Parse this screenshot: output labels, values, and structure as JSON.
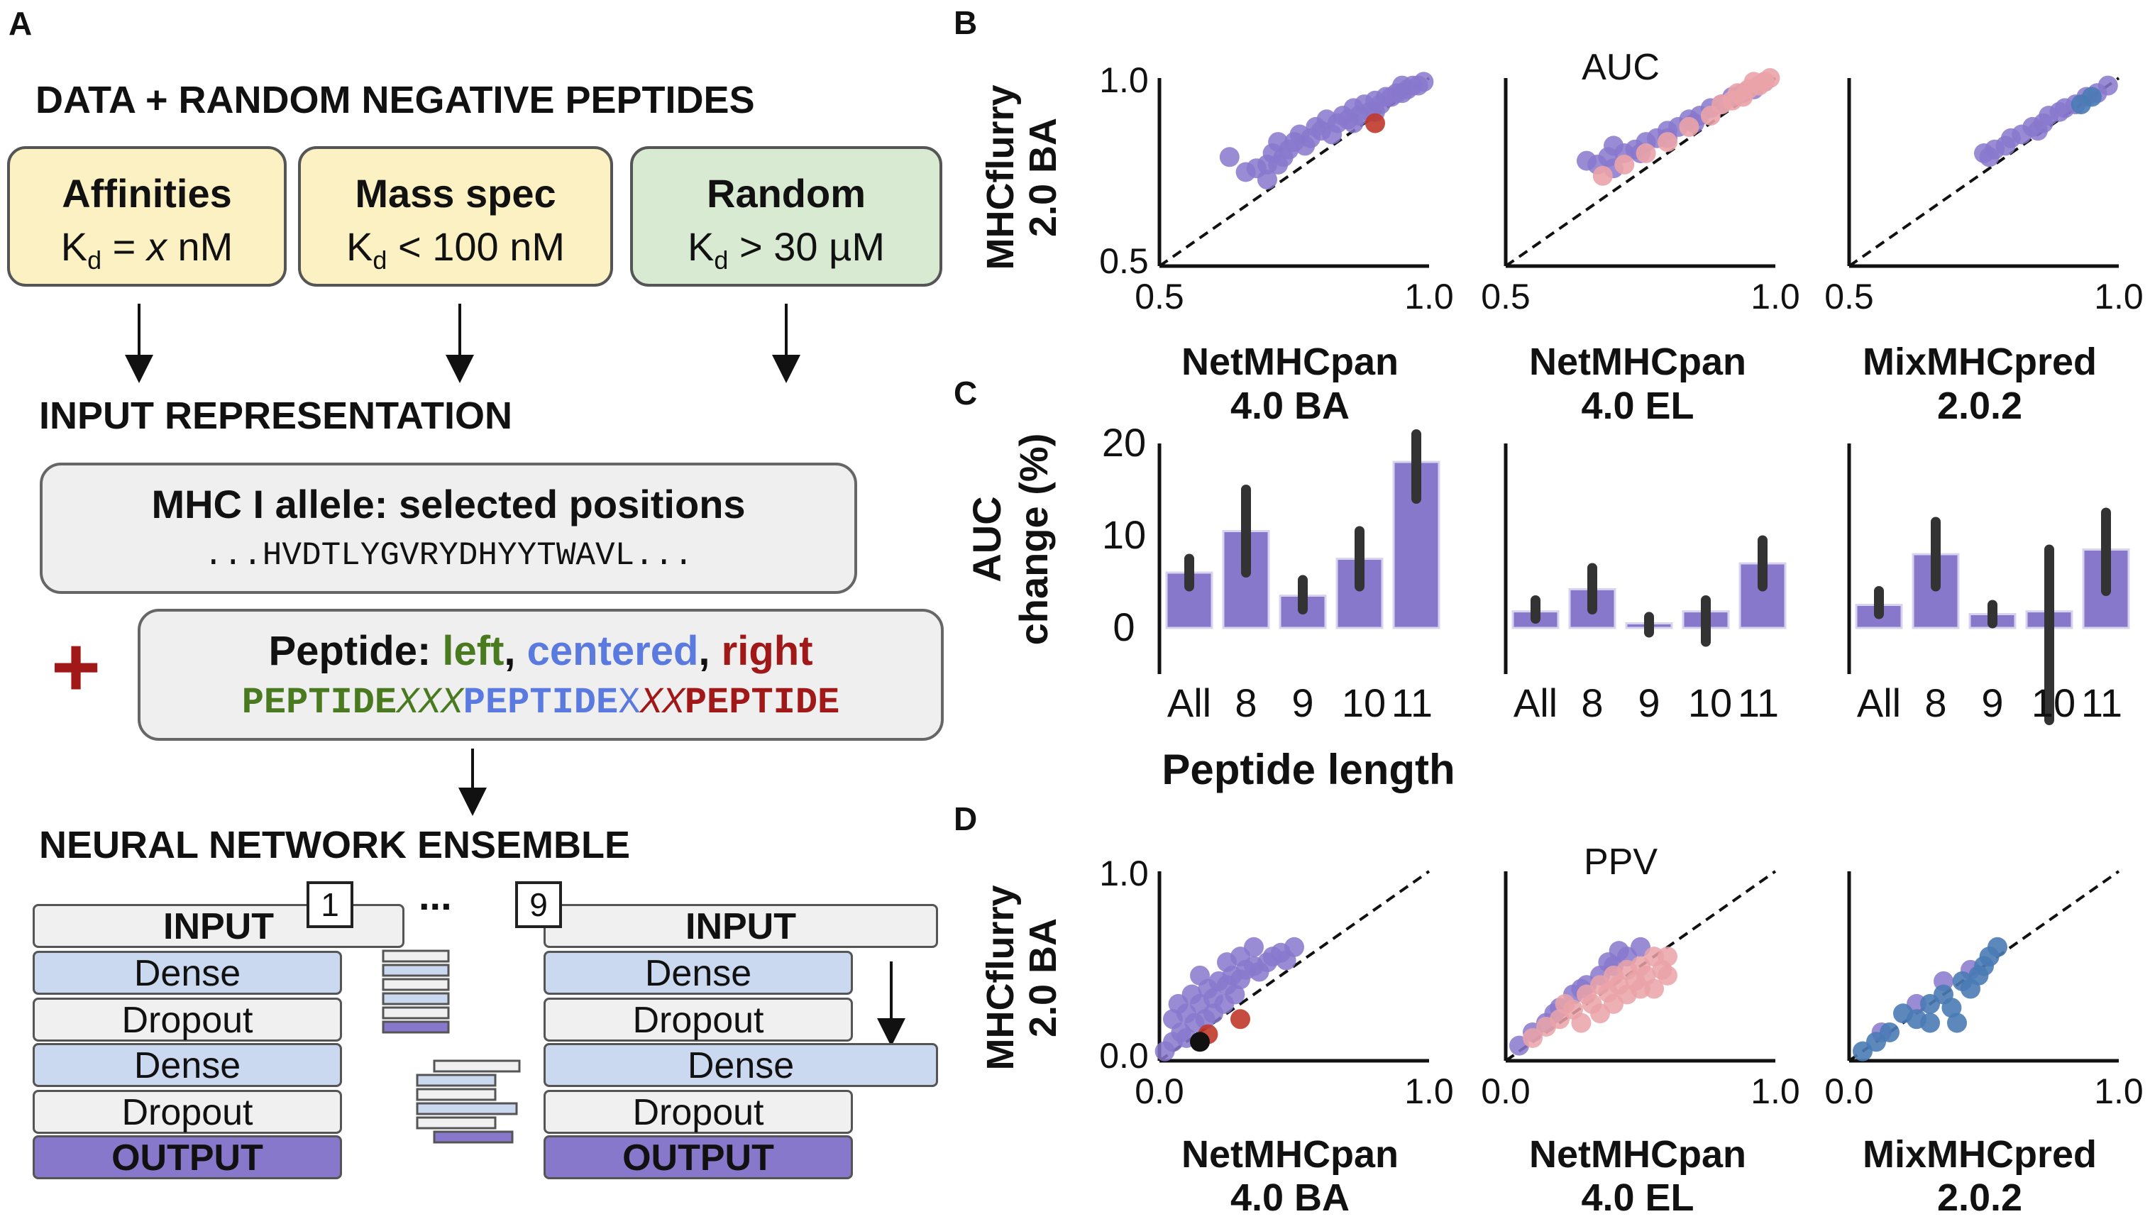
{
  "panel_a": {
    "letter": "A",
    "section1": "DATA + RANDOM NEGATIVE PEPTIDES",
    "boxes": [
      {
        "title": "Affinities",
        "k": "K",
        "sub": "d",
        "rel": " = ",
        "val": "x",
        "unit": " nM",
        "color": "#fbf1c2"
      },
      {
        "title": "Mass spec",
        "k": "K",
        "sub": "d",
        "rel": " < 100 nM",
        "val": "",
        "unit": "",
        "color": "#fbf1c2"
      },
      {
        "title": "Random",
        "k": "K",
        "sub": "d",
        "rel": " > 30 µM",
        "val": "",
        "unit": "",
        "color": "#d9ead3"
      }
    ],
    "section2": "INPUT REPRESENTATION",
    "mhc_title": "MHC I allele: selected positions",
    "mhc_seq": "...HVDTLYGVRYDHYYTWAVL...",
    "plus": "+",
    "pep_label": "Peptide: ",
    "pep_left": "left",
    "pep_comma1": ", ",
    "pep_centered": "centered",
    "pep_comma2": ", ",
    "pep_right": "right",
    "seq_parts": [
      {
        "text": "PEPTIDE",
        "color": "#4a7a20",
        "italic": false,
        "bold": true
      },
      {
        "text": "XXX",
        "color": "#4a7a20",
        "italic": true,
        "bold": false
      },
      {
        "text": "PEPTIDE",
        "color": "#5b7ae0",
        "italic": false,
        "bold": true
      },
      {
        "text": "X",
        "color": "#5b7ae0",
        "italic": false,
        "bold": false
      },
      {
        "text": "XX",
        "color": "#a01818",
        "italic": true,
        "bold": false
      },
      {
        "text": "PEPTIDE",
        "color": "#a01818",
        "italic": false,
        "bold": true
      }
    ],
    "section3": "NEURAL NETWORK ENSEMBLE",
    "net1_num": "1",
    "net9_num": "9",
    "ellipsis": "...",
    "layers": [
      "INPUT",
      "Dense",
      "Dropout",
      "Dense",
      "Dropout",
      "OUTPUT"
    ]
  },
  "panel_b": {
    "letter": "B",
    "ylabel_1": "MHCflurry",
    "ylabel_2": "2.0 BA",
    "title": "AUC",
    "tick_min": "0.5",
    "tick_max": "1.0"
  },
  "panel_c": {
    "letter": "C",
    "ylabel_1": "AUC",
    "ylabel_2": "change (%)",
    "xlabel": "Peptide length",
    "yticks": [
      "20",
      "10",
      "0"
    ],
    "xticks": [
      "All",
      "8",
      "9",
      "10",
      "11"
    ]
  },
  "panel_d": {
    "letter": "D",
    "ylabel_1": "MHCflurry",
    "ylabel_2": "2.0 BA",
    "title": "PPV",
    "tick_min": "0.0",
    "tick_max": "1.0"
  },
  "predictors": [
    {
      "line1": "NetMHCpan",
      "line2": "4.0 BA"
    },
    {
      "line1": "NetMHCpan",
      "line2": "4.0 EL"
    },
    {
      "line1": "MixMHCpred",
      "line2": "2.0.2"
    }
  ],
  "colors": {
    "purple": "#8878cc",
    "pink": "#eaa3a8",
    "red": "#c0392b",
    "blue": "#4a7bb5",
    "bar": "#8878cc",
    "errbar": "#333333"
  },
  "chart_data": [
    {
      "panel": "B",
      "type": "scatter",
      "title": "AUC",
      "xlim": [
        0.5,
        1.0
      ],
      "ylim": [
        0.5,
        1.0
      ],
      "plots": [
        {
          "predictor": "NetMHCpan 4.0 BA",
          "points": [
            [
              0.63,
              0.79
            ],
            [
              0.66,
              0.75
            ],
            [
              0.68,
              0.76
            ],
            [
              0.7,
              0.77
            ],
            [
              0.71,
              0.8
            ],
            [
              0.72,
              0.77
            ],
            [
              0.73,
              0.79
            ],
            [
              0.74,
              0.81
            ],
            [
              0.75,
              0.83
            ],
            [
              0.72,
              0.83
            ],
            [
              0.76,
              0.85
            ],
            [
              0.78,
              0.84
            ],
            [
              0.79,
              0.87
            ],
            [
              0.8,
              0.86
            ],
            [
              0.81,
              0.89
            ],
            [
              0.83,
              0.88
            ],
            [
              0.84,
              0.9
            ],
            [
              0.85,
              0.89
            ],
            [
              0.86,
              0.92
            ],
            [
              0.87,
              0.9
            ],
            [
              0.88,
              0.93
            ],
            [
              0.89,
              0.91
            ],
            [
              0.9,
              0.94
            ],
            [
              0.91,
              0.93
            ],
            [
              0.92,
              0.95
            ],
            [
              0.93,
              0.95
            ],
            [
              0.94,
              0.96
            ],
            [
              0.95,
              0.96
            ],
            [
              0.96,
              0.97
            ],
            [
              0.97,
              0.98
            ],
            [
              0.98,
              0.98
            ],
            [
              0.99,
              0.99
            ],
            [
              0.7,
              0.73
            ],
            [
              0.77,
              0.82
            ],
            [
              0.82,
              0.85
            ],
            [
              0.86,
              0.88
            ],
            [
              0.9,
              0.91
            ],
            [
              0.95,
              0.98
            ]
          ],
          "points_b": [
            [
              0.9,
              0.88
            ]
          ]
        },
        {
          "predictor": "NetMHCpan 4.0 EL",
          "points": [
            [
              0.65,
              0.78
            ],
            [
              0.67,
              0.77
            ],
            [
              0.69,
              0.79
            ],
            [
              0.7,
              0.76
            ],
            [
              0.72,
              0.8
            ],
            [
              0.74,
              0.81
            ],
            [
              0.76,
              0.83
            ],
            [
              0.78,
              0.84
            ],
            [
              0.8,
              0.86
            ],
            [
              0.82,
              0.87
            ],
            [
              0.84,
              0.89
            ],
            [
              0.86,
              0.9
            ],
            [
              0.88,
              0.92
            ],
            [
              0.9,
              0.93
            ],
            [
              0.92,
              0.95
            ],
            [
              0.94,
              0.96
            ],
            [
              0.96,
              0.97
            ],
            [
              0.98,
              0.99
            ],
            [
              0.7,
              0.82
            ],
            [
              0.75,
              0.8
            ],
            [
              0.8,
              0.84
            ],
            [
              0.85,
              0.88
            ]
          ],
          "points_b": [
            [
              0.68,
              0.74
            ],
            [
              0.72,
              0.77
            ],
            [
              0.76,
              0.8
            ],
            [
              0.8,
              0.83
            ],
            [
              0.84,
              0.87
            ],
            [
              0.88,
              0.9
            ],
            [
              0.9,
              0.93
            ],
            [
              0.92,
              0.94
            ],
            [
              0.94,
              0.95
            ],
            [
              0.95,
              0.97
            ],
            [
              0.97,
              0.98
            ],
            [
              0.98,
              0.99
            ],
            [
              0.99,
              1.0
            ],
            [
              0.96,
              0.99
            ],
            [
              0.93,
              0.96
            ]
          ]
        },
        {
          "predictor": "MixMHCpred 2.0.2",
          "points": [
            [
              0.75,
              0.8
            ],
            [
              0.77,
              0.81
            ],
            [
              0.79,
              0.82
            ],
            [
              0.8,
              0.84
            ],
            [
              0.82,
              0.85
            ],
            [
              0.84,
              0.87
            ],
            [
              0.86,
              0.88
            ],
            [
              0.87,
              0.9
            ],
            [
              0.89,
              0.91
            ],
            [
              0.9,
              0.92
            ],
            [
              0.92,
              0.93
            ],
            [
              0.94,
              0.95
            ],
            [
              0.96,
              0.96
            ],
            [
              0.98,
              0.98
            ],
            [
              0.76,
              0.79
            ],
            [
              0.85,
              0.86
            ]
          ],
          "points_b": [
            [
              0.93,
              0.93
            ],
            [
              0.95,
              0.95
            ]
          ]
        }
      ]
    },
    {
      "panel": "C",
      "type": "bar",
      "xlabel": "Peptide length",
      "ylabel": "AUC change (%)",
      "categories": [
        "All",
        "8",
        "9",
        "10",
        "11"
      ],
      "ylim": [
        -5,
        20
      ],
      "series": [
        {
          "predictor": "NetMHCpan 4.0 BA",
          "values": [
            6,
            10.5,
            3.5,
            7.5,
            18
          ],
          "err_low": [
            4.5,
            6,
            2,
            4.5,
            14
          ],
          "err_high": [
            7.5,
            15,
            5.2,
            10.5,
            21
          ]
        },
        {
          "predictor": "NetMHCpan 4.0 EL",
          "values": [
            1.8,
            4.2,
            0.5,
            1.8,
            7
          ],
          "err_low": [
            1,
            2,
            -0.5,
            -1.5,
            4.5
          ],
          "err_high": [
            3,
            6.5,
            1.2,
            3,
            9.5
          ]
        },
        {
          "predictor": "MixMHCpred 2.0.2",
          "values": [
            2.5,
            8,
            1.5,
            1.8,
            8.5
          ],
          "err_low": [
            1.5,
            4.5,
            0.5,
            -10,
            4
          ],
          "err_high": [
            4,
            11.5,
            2.5,
            8.5,
            12.5
          ]
        }
      ]
    },
    {
      "panel": "D",
      "type": "scatter",
      "title": "PPV",
      "xlim": [
        0.0,
        1.0
      ],
      "ylim": [
        0.0,
        1.0
      ],
      "plots": [
        {
          "predictor": "NetMHCpan 4.0 BA",
          "points": [
            [
              0.05,
              0.22
            ],
            [
              0.07,
              0.3
            ],
            [
              0.1,
              0.25
            ],
            [
              0.12,
              0.35
            ],
            [
              0.15,
              0.3
            ],
            [
              0.18,
              0.38
            ],
            [
              0.2,
              0.33
            ],
            [
              0.22,
              0.42
            ],
            [
              0.25,
              0.4
            ],
            [
              0.27,
              0.45
            ],
            [
              0.3,
              0.43
            ],
            [
              0.32,
              0.48
            ],
            [
              0.35,
              0.5
            ],
            [
              0.37,
              0.47
            ],
            [
              0.4,
              0.52
            ],
            [
              0.42,
              0.55
            ],
            [
              0.45,
              0.57
            ],
            [
              0.47,
              0.53
            ],
            [
              0.5,
              0.6
            ],
            [
              0.05,
              0.1
            ],
            [
              0.08,
              0.15
            ],
            [
              0.1,
              0.12
            ],
            [
              0.13,
              0.2
            ],
            [
              0.17,
              0.22
            ],
            [
              0.2,
              0.25
            ],
            [
              0.24,
              0.3
            ],
            [
              0.28,
              0.35
            ],
            [
              0.3,
              0.55
            ],
            [
              0.35,
              0.6
            ],
            [
              0.02,
              0.05
            ],
            [
              0.15,
              0.45
            ],
            [
              0.25,
              0.52
            ]
          ],
          "points_b": [
            [
              0.3,
              0.22
            ],
            [
              0.18,
              0.14
            ]
          ],
          "points_k": [
            [
              0.15,
              0.1
            ]
          ]
        },
        {
          "predictor": "NetMHCpan 4.0 EL",
          "points": [
            [
              0.05,
              0.08
            ],
            [
              0.1,
              0.15
            ],
            [
              0.15,
              0.2
            ],
            [
              0.2,
              0.28
            ],
            [
              0.25,
              0.35
            ],
            [
              0.3,
              0.4
            ],
            [
              0.35,
              0.45
            ],
            [
              0.4,
              0.5
            ],
            [
              0.45,
              0.55
            ],
            [
              0.5,
              0.6
            ],
            [
              0.38,
              0.52
            ],
            [
              0.42,
              0.58
            ],
            [
              0.28,
              0.38
            ],
            [
              0.18,
              0.25
            ]
          ],
          "points_b": [
            [
              0.1,
              0.12
            ],
            [
              0.15,
              0.18
            ],
            [
              0.2,
              0.22
            ],
            [
              0.22,
              0.3
            ],
            [
              0.25,
              0.27
            ],
            [
              0.3,
              0.35
            ],
            [
              0.32,
              0.3
            ],
            [
              0.35,
              0.4
            ],
            [
              0.38,
              0.36
            ],
            [
              0.4,
              0.45
            ],
            [
              0.42,
              0.4
            ],
            [
              0.45,
              0.48
            ],
            [
              0.48,
              0.42
            ],
            [
              0.5,
              0.5
            ],
            [
              0.52,
              0.45
            ],
            [
              0.55,
              0.55
            ],
            [
              0.58,
              0.48
            ],
            [
              0.6,
              0.55
            ],
            [
              0.35,
              0.25
            ],
            [
              0.4,
              0.3
            ],
            [
              0.45,
              0.35
            ],
            [
              0.5,
              0.38
            ],
            [
              0.28,
              0.2
            ],
            [
              0.55,
              0.38
            ],
            [
              0.6,
              0.45
            ]
          ]
        },
        {
          "predictor": "MixMHCpred 2.0.2",
          "points": [
            [
              0.12,
              0.15
            ],
            [
              0.25,
              0.3
            ],
            [
              0.35,
              0.42
            ],
            [
              0.45,
              0.48
            ]
          ],
          "points_b": [
            [
              0.05,
              0.05
            ],
            [
              0.1,
              0.1
            ],
            [
              0.15,
              0.15
            ],
            [
              0.2,
              0.25
            ],
            [
              0.25,
              0.22
            ],
            [
              0.3,
              0.3
            ],
            [
              0.35,
              0.35
            ],
            [
              0.38,
              0.28
            ],
            [
              0.42,
              0.42
            ],
            [
              0.45,
              0.38
            ],
            [
              0.48,
              0.45
            ],
            [
              0.5,
              0.5
            ],
            [
              0.52,
              0.55
            ],
            [
              0.55,
              0.6
            ],
            [
              0.4,
              0.2
            ],
            [
              0.3,
              0.2
            ]
          ]
        }
      ]
    }
  ]
}
